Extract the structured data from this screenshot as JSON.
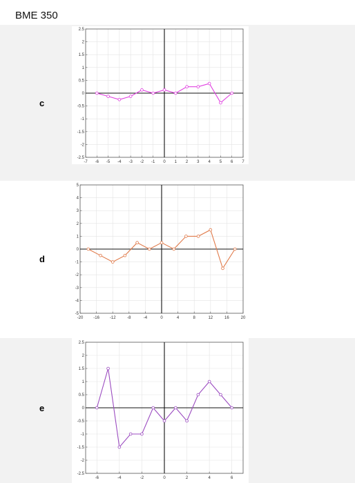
{
  "document": {
    "title": "BME 350"
  },
  "panels": [
    {
      "label": "c"
    },
    {
      "label": "d"
    },
    {
      "label": "e"
    }
  ],
  "chart_data": [
    {
      "type": "line",
      "title": "",
      "xlabel": "",
      "ylabel": "",
      "xlim": [
        -7,
        7
      ],
      "ylim": [
        -2.5,
        2.5
      ],
      "xticks": [
        -7,
        -6,
        -5,
        -4,
        -3,
        -2,
        -1,
        0,
        1,
        2,
        3,
        4,
        5,
        6,
        7
      ],
      "yticks": [
        -2.5,
        -2,
        -1.5,
        -1,
        -0.5,
        0,
        0.5,
        1,
        1.5,
        2,
        2.5
      ],
      "grid": true,
      "color": "#e040e0",
      "series": [
        {
          "x": [
            -6,
            -5,
            -4,
            -3,
            -2,
            -1,
            0,
            1,
            2,
            3,
            4,
            5,
            6
          ],
          "values": [
            0,
            -0.125,
            -0.25,
            -0.125,
            0.125,
            0,
            0.125,
            0,
            0.25,
            0.25,
            0.375,
            -0.375,
            0
          ]
        }
      ]
    },
    {
      "type": "line",
      "title": "",
      "xlabel": "",
      "ylabel": "",
      "xlim": [
        -20,
        20
      ],
      "ylim": [
        -5,
        5
      ],
      "xticks": [
        -20,
        -16,
        -12,
        -8,
        -4,
        0,
        4,
        8,
        12,
        16,
        20
      ],
      "yticks": [
        -5,
        -4,
        -3,
        -2,
        -1,
        0,
        1,
        2,
        3,
        4,
        5
      ],
      "grid": true,
      "color": "#e07a4a",
      "series": [
        {
          "x": [
            -18,
            -15,
            -12,
            -9,
            -6,
            -3,
            0,
            3,
            6,
            9,
            12,
            15,
            18
          ],
          "values": [
            0,
            -0.5,
            -1,
            -0.5,
            0.5,
            0,
            0.5,
            0,
            1,
            1,
            1.5,
            -1.5,
            0
          ]
        }
      ]
    },
    {
      "type": "line",
      "title": "",
      "xlabel": "",
      "ylabel": "",
      "xlim": [
        -7,
        7
      ],
      "ylim": [
        -2.5,
        2.5
      ],
      "xticks": [
        -6,
        -4,
        -2,
        0,
        2,
        4,
        6
      ],
      "yticks": [
        -2.5,
        -2,
        -1.5,
        -1,
        -0.5,
        0,
        0.5,
        1,
        1.5,
        2,
        2.5
      ],
      "grid": true,
      "color": "#9b4bc0",
      "series": [
        {
          "x": [
            -6,
            -5,
            -4,
            -3,
            -2,
            -1,
            0,
            1,
            2,
            3,
            4,
            5,
            6
          ],
          "values": [
            0,
            1.5,
            -1.5,
            -1,
            -1,
            0,
            -0.5,
            0,
            -0.5,
            0.5,
            1,
            0.5,
            0
          ]
        }
      ]
    }
  ]
}
